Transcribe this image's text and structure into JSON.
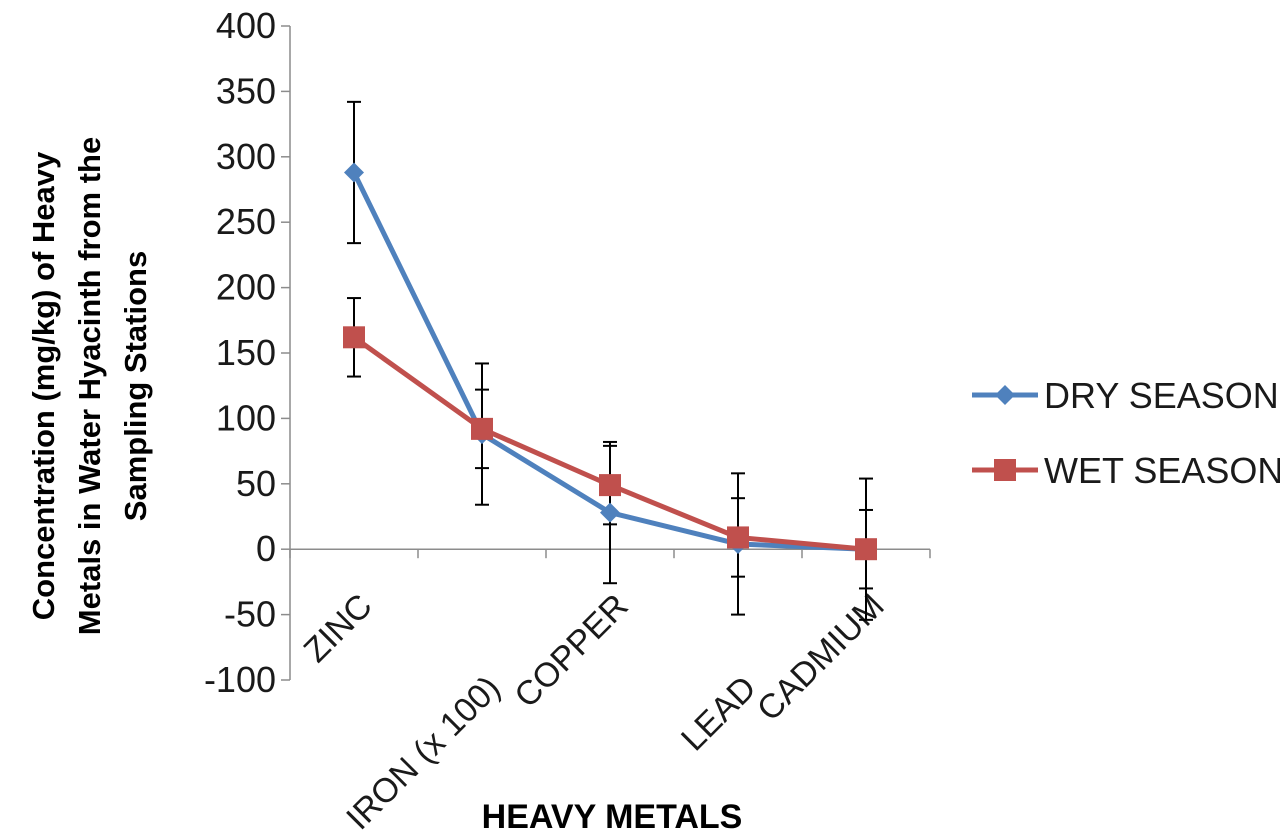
{
  "chart_data": {
    "type": "line",
    "title": "",
    "xlabel": "HEAVY METALS",
    "ylabel_lines": [
      "Concentration (mg/kg) of Heavy",
      "Metals in Water Hyacinth from the",
      "Sampling Stations"
    ],
    "categories": [
      "ZINC",
      "IRON (x 100)",
      "COPPER",
      "LEAD",
      "CADMIUM"
    ],
    "ylim": [
      -100,
      400
    ],
    "yticks": [
      -100,
      -50,
      0,
      50,
      100,
      150,
      200,
      250,
      300,
      350,
      400
    ],
    "grid": false,
    "legend_position": "right",
    "series": [
      {
        "name": "DRY SEASON",
        "color": "#4F81BD",
        "marker": "diamond",
        "values": [
          288,
          88,
          28,
          4,
          0
        ],
        "error": [
          54,
          54,
          54,
          54,
          54
        ]
      },
      {
        "name": "WET SEASON",
        "color": "#C0504D",
        "marker": "square",
        "values": [
          162,
          92,
          49,
          9,
          0
        ],
        "error": [
          30,
          30,
          30,
          30,
          30
        ]
      }
    ]
  }
}
